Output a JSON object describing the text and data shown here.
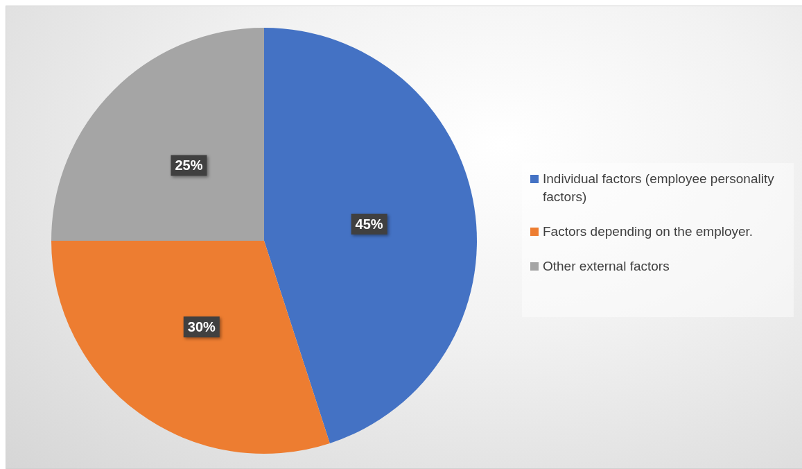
{
  "chart_data": {
    "type": "pie",
    "categories": [
      "Individual factors (employee personality factors)",
      "Factors depending on the employer.",
      "Other external factors"
    ],
    "values": [
      45,
      30,
      25
    ],
    "colors": [
      "#4472c4",
      "#ed7d31",
      "#a5a5a5"
    ],
    "value_labels": [
      "45%",
      "30%",
      "25%"
    ],
    "legend": "right"
  }
}
